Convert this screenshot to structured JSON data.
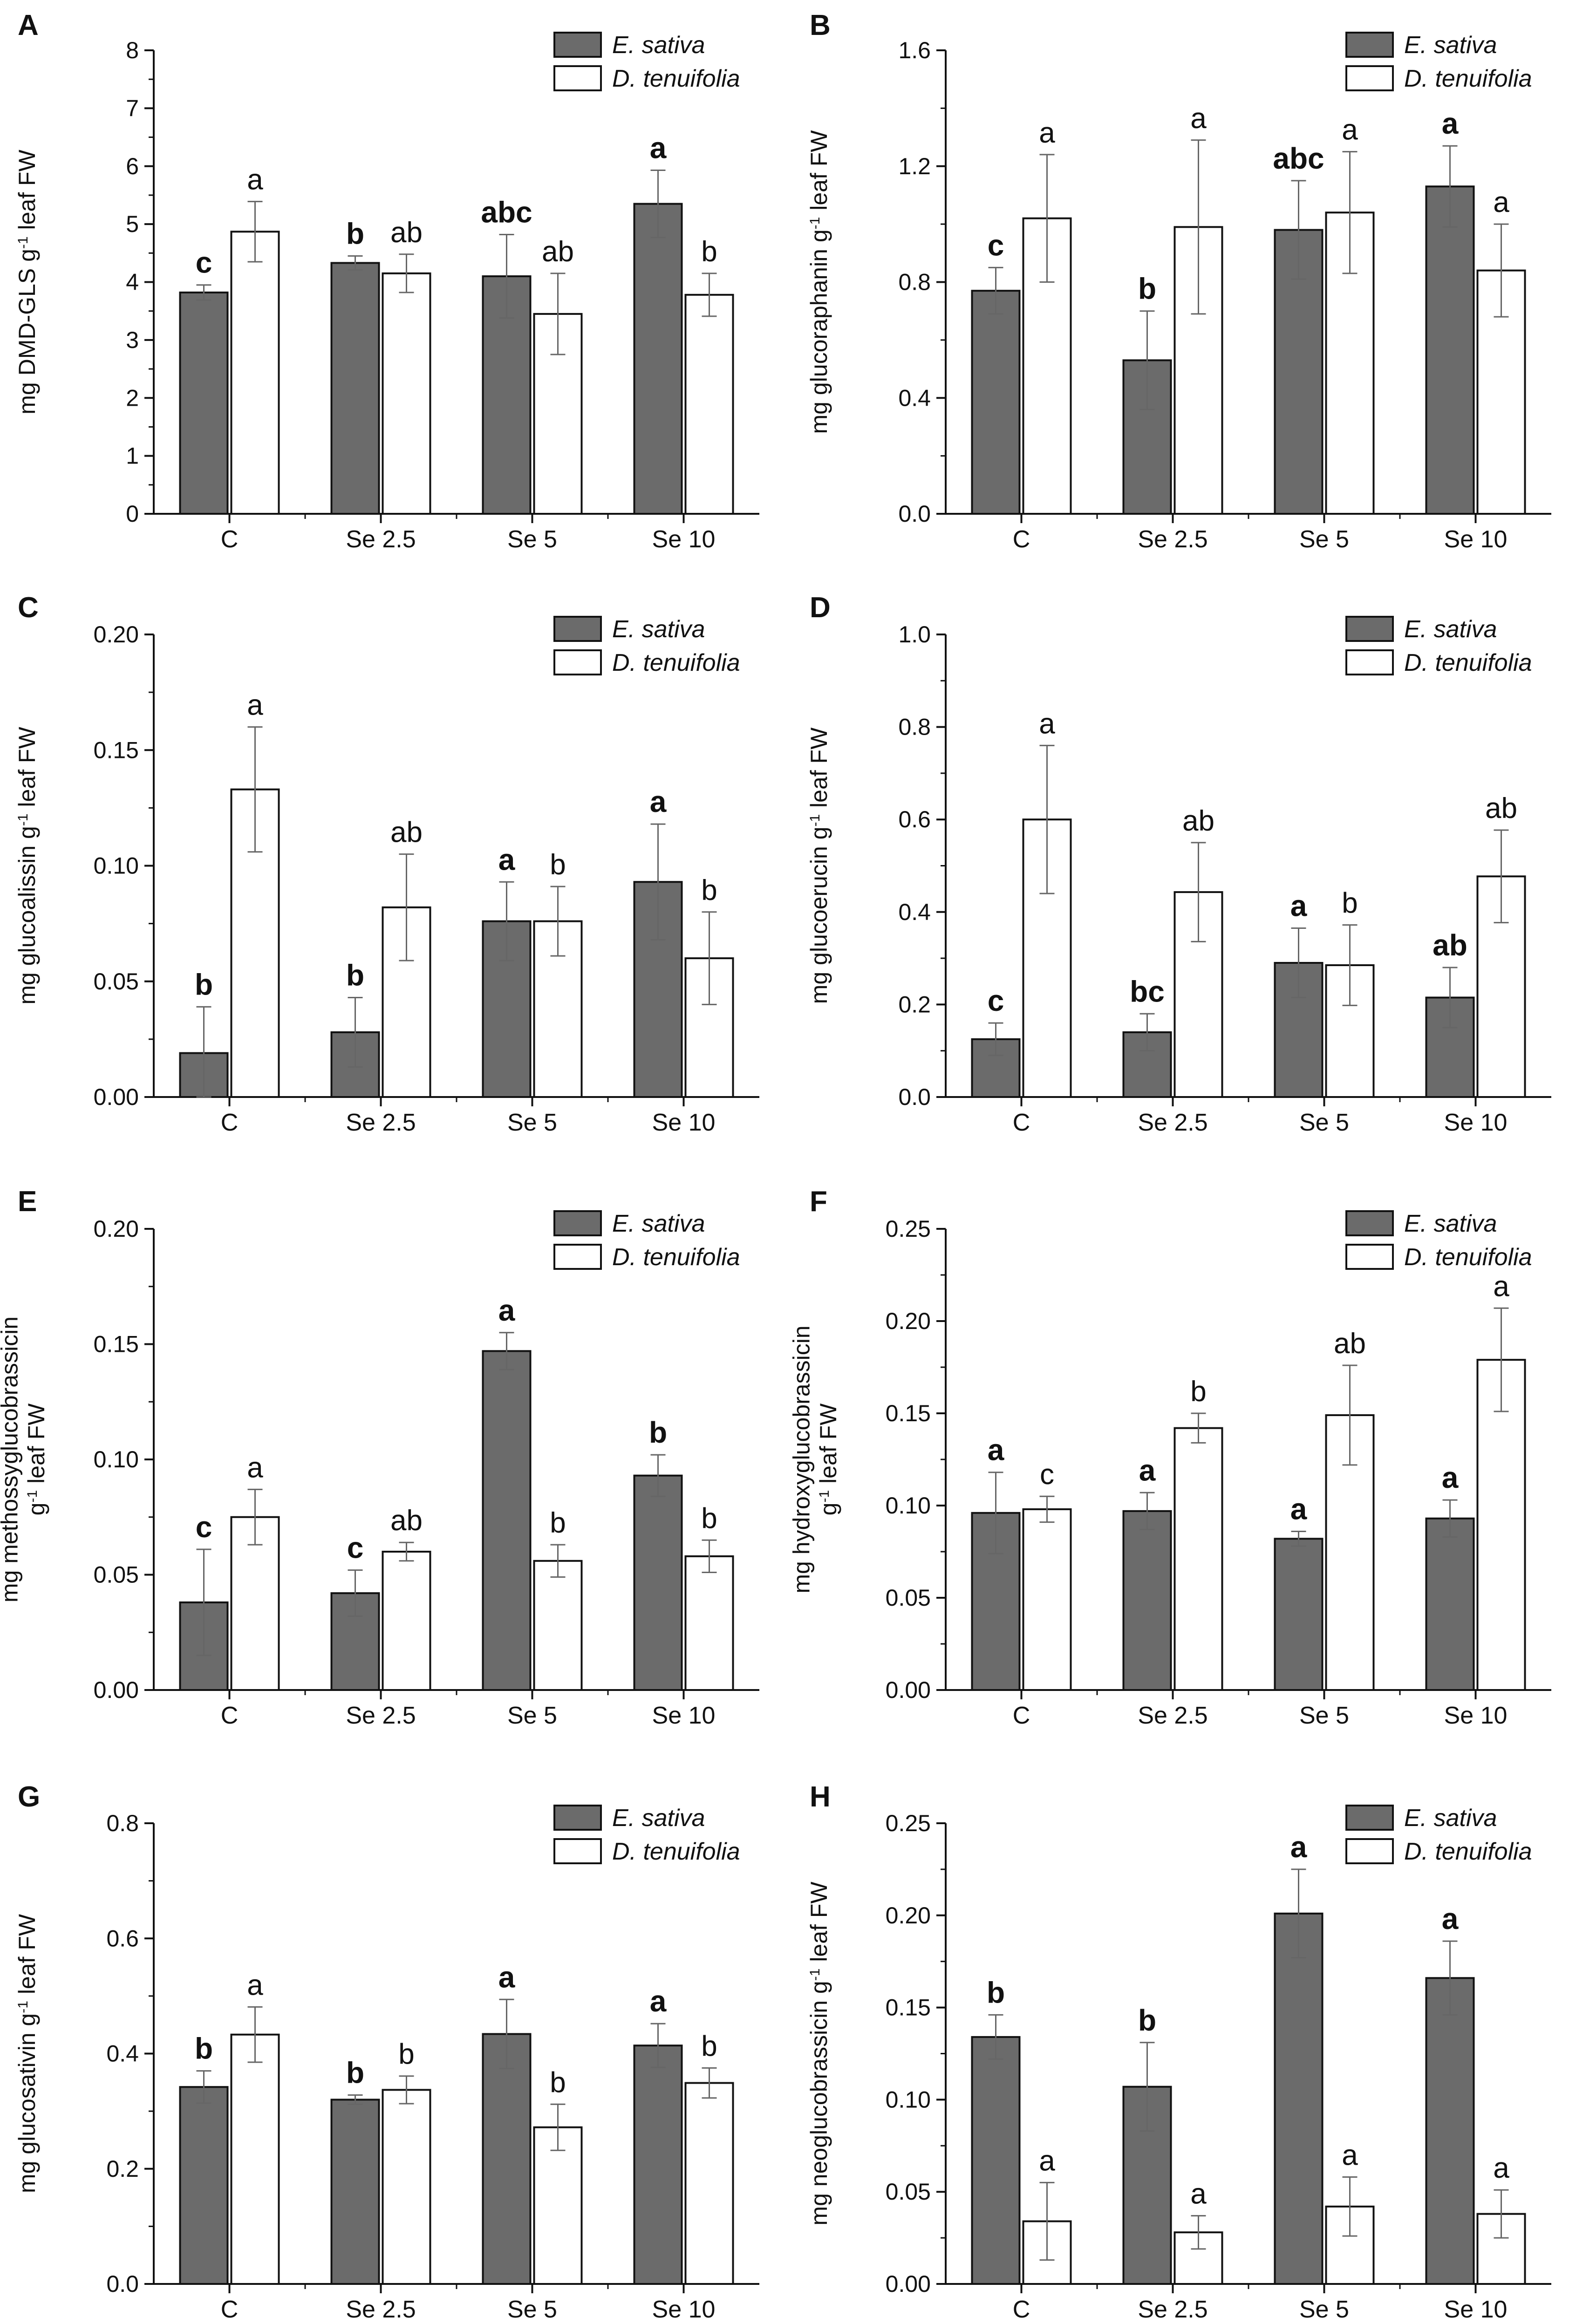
{
  "colors": {
    "es_fill": "#6b6b6b",
    "dt_fill": "#ffffff",
    "stroke": "#111111",
    "err": "#666666"
  },
  "chart_data": [
    {
      "panel": "A",
      "type": "bar",
      "ylabel_html": "mg DMD-GLS g<tspan baseline-shift=\"super\" font-size=\"60%\">-1</tspan> leaf FW",
      "ylim": [
        0,
        8
      ],
      "ticks": [
        "0",
        "1",
        "2",
        "3",
        "4",
        "5",
        "6",
        "7",
        "8"
      ],
      "categories": [
        "C",
        "Se 2.5",
        "Se 5",
        "Se 10"
      ],
      "legend": [
        {
          "label": "E. sativa"
        },
        {
          "label": "D. tenuifolia"
        }
      ],
      "series": [
        {
          "name": "E. sativa",
          "values": [
            3.82,
            4.33,
            4.1,
            5.35
          ],
          "errors": [
            0.13,
            0.12,
            0.72,
            0.58
          ],
          "letters": [
            "c",
            "b",
            "abc",
            "a"
          ]
        },
        {
          "name": "D. tenuifolia",
          "values": [
            4.87,
            4.15,
            3.45,
            3.78
          ],
          "errors": [
            0.52,
            0.33,
            0.7,
            0.37
          ],
          "letters": [
            "a",
            "ab",
            "ab",
            "b"
          ]
        }
      ]
    },
    {
      "panel": "B",
      "type": "bar",
      "ylabel_html": "mg glucoraphanin g<tspan baseline-shift=\"super\" font-size=\"60%\">-1</tspan> leaf FW",
      "ylim": [
        0,
        1.6
      ],
      "ticks": [
        "0.0",
        "0.4",
        "0.8",
        "1.2",
        "1.6"
      ],
      "categories": [
        "C",
        "Se 2.5",
        "Se 5",
        "Se 10"
      ],
      "legend": [
        {
          "label": "E. sativa"
        },
        {
          "label": "D. tenuifolia"
        }
      ],
      "series": [
        {
          "name": "E. sativa",
          "values": [
            0.77,
            0.53,
            0.98,
            1.13
          ],
          "errors": [
            0.08,
            0.17,
            0.17,
            0.14
          ],
          "letters": [
            "c",
            "b",
            "abc",
            "a"
          ]
        },
        {
          "name": "D. tenuifolia",
          "values": [
            1.02,
            0.99,
            1.04,
            0.84
          ],
          "errors": [
            0.22,
            0.3,
            0.21,
            0.16
          ],
          "letters": [
            "a",
            "a",
            "a",
            "a"
          ]
        }
      ]
    },
    {
      "panel": "C",
      "type": "bar",
      "ylabel_html": "mg glucoalissin g<tspan baseline-shift=\"super\" font-size=\"60%\">-1</tspan> leaf FW",
      "ylim": [
        0,
        0.2
      ],
      "ticks": [
        "0.00",
        "0.05",
        "0.10",
        "0.15",
        "0.20"
      ],
      "categories": [
        "C",
        "Se 2.5",
        "Se 5",
        "Se 10"
      ],
      "legend": [
        {
          "label": "E. sativa"
        },
        {
          "label": "D. tenuifolia"
        }
      ],
      "series": [
        {
          "name": "E. sativa",
          "values": [
            0.019,
            0.028,
            0.076,
            0.093
          ],
          "errors": [
            0.02,
            0.015,
            0.017,
            0.025
          ],
          "letters": [
            "b",
            "b",
            "a",
            "a"
          ]
        },
        {
          "name": "D. tenuifolia",
          "values": [
            0.133,
            0.082,
            0.076,
            0.06
          ],
          "errors": [
            0.027,
            0.023,
            0.015,
            0.02
          ],
          "letters": [
            "a",
            "ab",
            "b",
            "b"
          ]
        }
      ]
    },
    {
      "panel": "D",
      "type": "bar",
      "ylabel_html": "mg glucoerucin g<tspan baseline-shift=\"super\" font-size=\"60%\">-1</tspan> leaf FW",
      "ylim": [
        0,
        1.0
      ],
      "ticks": [
        "0.0",
        "0.2",
        "0.4",
        "0.6",
        "0.8",
        "1.0"
      ],
      "categories": [
        "C",
        "Se 2.5",
        "Se 5",
        "Se 10"
      ],
      "legend": [
        {
          "label": "E. sativa"
        },
        {
          "label": "D. tenuifolia"
        }
      ],
      "series": [
        {
          "name": "E. sativa",
          "values": [
            0.125,
            0.14,
            0.29,
            0.215
          ],
          "errors": [
            0.035,
            0.04,
            0.075,
            0.065
          ],
          "letters": [
            "c",
            "bc",
            "a",
            "ab"
          ]
        },
        {
          "name": "D. tenuifolia",
          "values": [
            0.6,
            0.443,
            0.285,
            0.477
          ],
          "errors": [
            0.16,
            0.107,
            0.087,
            0.1
          ],
          "letters": [
            "a",
            "ab",
            "b",
            "ab"
          ]
        }
      ]
    },
    {
      "panel": "E",
      "type": "bar",
      "ylabel_html": "<tspan x=\"0\" dy=\"-1.15em\">mg methossyglucobrassicin</tspan><tspan x=\"0\" dy=\"1.15em\">g<tspan baseline-shift=\"super\" font-size=\"60%\">-1</tspan> leaf FW</tspan>",
      "ylim": [
        0,
        0.2
      ],
      "ticks": [
        "0.00",
        "0.05",
        "0.10",
        "0.15",
        "0.20"
      ],
      "categories": [
        "C",
        "Se 2.5",
        "Se 5",
        "Se 10"
      ],
      "legend": [
        {
          "label": "E. sativa"
        },
        {
          "label": "D. tenuifolia"
        }
      ],
      "series": [
        {
          "name": "E. sativa",
          "values": [
            0.038,
            0.042,
            0.147,
            0.093
          ],
          "errors": [
            0.023,
            0.01,
            0.008,
            0.009
          ],
          "letters": [
            "c",
            "c",
            "a",
            "b"
          ]
        },
        {
          "name": "D. tenuifolia",
          "values": [
            0.075,
            0.06,
            0.056,
            0.058
          ],
          "errors": [
            0.012,
            0.004,
            0.007,
            0.007
          ],
          "letters": [
            "a",
            "ab",
            "b",
            "b"
          ]
        }
      ]
    },
    {
      "panel": "F",
      "type": "bar",
      "ylabel_html": "<tspan x=\"0\" dy=\"-1.15em\">mg hydroxyglucobrassicin</tspan><tspan x=\"0\" dy=\"1.15em\">g<tspan baseline-shift=\"super\" font-size=\"60%\">-1</tspan> leaf FW</tspan>",
      "ylim": [
        0,
        0.25
      ],
      "ticks": [
        "0.00",
        "0.05",
        "0.10",
        "0.15",
        "0.20",
        "0.25"
      ],
      "categories": [
        "C",
        "Se 2.5",
        "Se 5",
        "Se 10"
      ],
      "legend": [
        {
          "label": "E. sativa"
        },
        {
          "label": "D. tenuifolia"
        }
      ],
      "series": [
        {
          "name": "E. sativa",
          "values": [
            0.096,
            0.097,
            0.082,
            0.093
          ],
          "errors": [
            0.022,
            0.01,
            0.004,
            0.01
          ],
          "letters": [
            "a",
            "a",
            "a",
            "a"
          ]
        },
        {
          "name": "D. tenuifolia",
          "values": [
            0.098,
            0.142,
            0.149,
            0.179
          ],
          "errors": [
            0.007,
            0.008,
            0.027,
            0.028
          ],
          "letters": [
            "c",
            "b",
            "ab",
            "a"
          ]
        }
      ]
    },
    {
      "panel": "G",
      "type": "bar",
      "ylabel_html": "mg glucosativin g<tspan baseline-shift=\"super\" font-size=\"60%\">-1</tspan> leaf FW",
      "ylim": [
        0,
        0.8
      ],
      "ticks": [
        "0.0",
        "0.2",
        "0.4",
        "0.6",
        "0.8"
      ],
      "categories": [
        "C",
        "Se 2.5",
        "Se 5",
        "Se 10"
      ],
      "legend": [
        {
          "label": "E. sativa"
        },
        {
          "label": "D. tenuifolia"
        }
      ],
      "series": [
        {
          "name": "E. sativa",
          "values": [
            0.342,
            0.32,
            0.434,
            0.414
          ],
          "errors": [
            0.028,
            0.008,
            0.06,
            0.038
          ],
          "letters": [
            "b",
            "b",
            "a",
            "a"
          ]
        },
        {
          "name": "D. tenuifolia",
          "values": [
            0.433,
            0.337,
            0.272,
            0.349
          ],
          "errors": [
            0.048,
            0.024,
            0.04,
            0.026
          ],
          "letters": [
            "a",
            "b",
            "b",
            "b"
          ]
        }
      ]
    },
    {
      "panel": "H",
      "type": "bar",
      "ylabel_html": "mg neoglucobrassicin g<tspan baseline-shift=\"super\" font-size=\"60%\">-1</tspan> leaf FW",
      "ylim": [
        0,
        0.25
      ],
      "ticks": [
        "0.00",
        "0.05",
        "0.10",
        "0.15",
        "0.20",
        "0.25"
      ],
      "categories": [
        "C",
        "Se 2.5",
        "Se 5",
        "Se 10"
      ],
      "legend": [
        {
          "label": "E. sativa"
        },
        {
          "label": "D. tenuifolia"
        }
      ],
      "series": [
        {
          "name": "E. sativa",
          "values": [
            0.134,
            0.107,
            0.201,
            0.166
          ],
          "errors": [
            0.012,
            0.024,
            0.024,
            0.02
          ],
          "letters": [
            "b",
            "b",
            "a",
            "a"
          ]
        },
        {
          "name": "D. tenuifolia",
          "values": [
            0.034,
            0.028,
            0.042,
            0.038
          ],
          "errors": [
            0.021,
            0.009,
            0.016,
            0.013
          ],
          "letters": [
            "a",
            "a",
            "a",
            "a"
          ]
        }
      ]
    }
  ]
}
